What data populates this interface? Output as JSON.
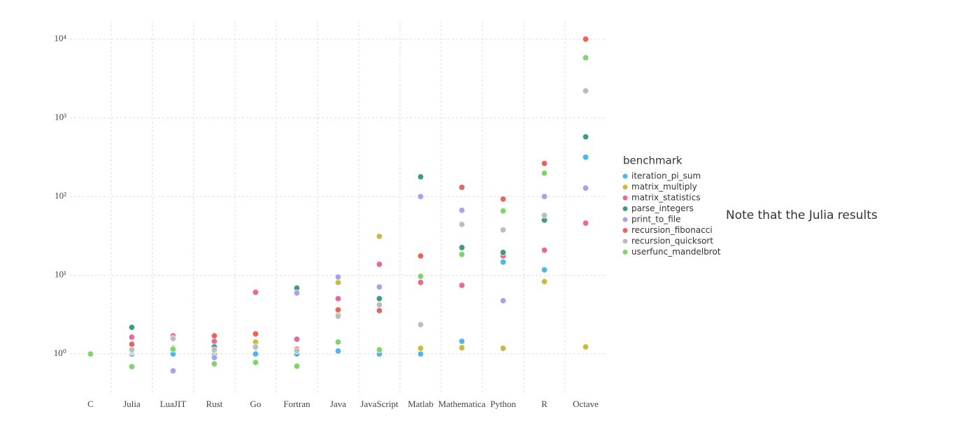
{
  "chart_data": {
    "type": "scatter",
    "log_y": true,
    "grid": true,
    "legend_position": "right",
    "legend_title": "benchmark",
    "note": "Note that the Julia results",
    "categories": [
      "C",
      "Julia",
      "LuaJIT",
      "Rust",
      "Go",
      "Fortran",
      "Java",
      "JavaScript",
      "Matlab",
      "Mathematica",
      "Python",
      "R",
      "Octave"
    ],
    "ylim": [
      0.3,
      17000
    ],
    "yticks": [
      {
        "value": 1,
        "label": "10⁰"
      },
      {
        "value": 10,
        "label": "10¹"
      },
      {
        "value": 100,
        "label": "10²"
      },
      {
        "value": 1000,
        "label": "10³"
      },
      {
        "value": 10000,
        "label": "10⁴"
      }
    ],
    "series": [
      {
        "name": "iteration_pi_sum",
        "color": "#4fb6ec",
        "values": [
          1,
          1,
          1,
          1,
          1,
          1,
          1.09,
          1,
          1,
          1.45,
          14.7,
          11.7,
          316
        ]
      },
      {
        "name": "matrix_multiply",
        "color": "#c9bb3c",
        "values": [
          1,
          1.06,
          1.15,
          1.09,
          1.42,
          1.15,
          8.1,
          31.2,
          1.18,
          1.2,
          1.18,
          8.3,
          1.23
        ]
      },
      {
        "name": "matrix_statistics",
        "color": "#e9689c",
        "values": [
          1,
          1.64,
          1.7,
          1.45,
          6.08,
          1.54,
          5.05,
          13.8,
          8.1,
          7.45,
          17.6,
          20.8,
          46
        ]
      },
      {
        "name": "parse_integers",
        "color": "#3a9e7c",
        "values": [
          1,
          2.18,
          1.18,
          1.23,
          1.2,
          6.87,
          3.15,
          5.05,
          178,
          22.5,
          19.5,
          50.2,
          574
        ]
      },
      {
        "name": "print_to_file",
        "color": "#ab9ff2",
        "values": [
          1,
          1.09,
          0.61,
          0.9,
          1.77,
          5.95,
          9.5,
          7.1,
          100,
          66.8,
          4.75,
          100,
          128
        ]
      },
      {
        "name": "recursion_fibonacci",
        "color": "#e8655a",
        "values": [
          1,
          1.33,
          1.18,
          1.7,
          1.8,
          1.15,
          3.64,
          3.56,
          17.6,
          131,
          93,
          263,
          10000
        ]
      },
      {
        "name": "recursion_quicksort",
        "color": "#bdbdbd",
        "values": [
          1,
          1.13,
          1.57,
          1.13,
          1.23,
          1.1,
          3.03,
          4.2,
          2.36,
          44.3,
          37.7,
          57.8,
          2200
        ]
      },
      {
        "name": "userfunc_mandelbrot",
        "color": "#7fd46c",
        "values": [
          1,
          0.69,
          1.15,
          0.75,
          0.78,
          0.7,
          1.42,
          1.13,
          9.7,
          18.4,
          65.7,
          198,
          5800
        ]
      }
    ]
  }
}
